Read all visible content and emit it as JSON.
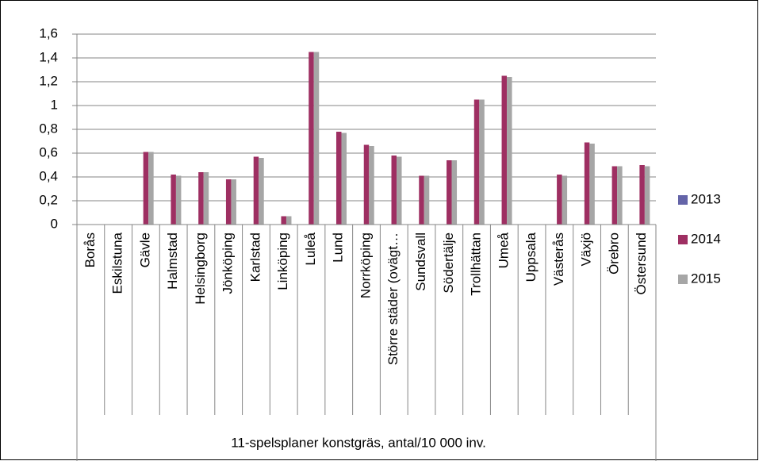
{
  "chart_data": {
    "type": "bar",
    "x_label": "11-spelsplaner konstgräs, antal/10 000 inv.",
    "categories": [
      "Borås",
      "Eskilstuna",
      "Gävle",
      "Halmstad",
      "Helsingborg",
      "Jönköping",
      "Karlstad",
      "Linköping",
      "Luleå",
      "Lund",
      "Norrköping",
      "Större städer (ovägt…",
      "Sundsvall",
      "Södertälje",
      "Trollhättan",
      "Umeå",
      "Uppsala",
      "Västerås",
      "Växjö",
      "Örebro",
      "Östersund"
    ],
    "series": [
      {
        "name": "2013",
        "color": "#6464a8",
        "values": [
          null,
          null,
          null,
          null,
          null,
          null,
          null,
          null,
          null,
          null,
          null,
          null,
          null,
          null,
          null,
          null,
          null,
          null,
          null,
          null,
          null
        ]
      },
      {
        "name": "2014",
        "color": "#9e2f62",
        "values": [
          null,
          null,
          0.61,
          0.42,
          0.44,
          0.38,
          0.57,
          0.07,
          1.45,
          0.78,
          0.67,
          0.58,
          0.41,
          0.54,
          1.05,
          1.25,
          null,
          0.42,
          0.69,
          0.49,
          0.5
        ]
      },
      {
        "name": "2015",
        "color": "#a6a6a6",
        "values": [
          null,
          null,
          0.61,
          0.41,
          0.44,
          0.38,
          0.56,
          0.07,
          1.45,
          0.77,
          0.66,
          0.57,
          0.41,
          0.54,
          1.05,
          1.24,
          null,
          0.41,
          0.68,
          0.49,
          0.49
        ]
      }
    ],
    "ylim": [
      0,
      1.6
    ],
    "yticks": [
      0,
      {
        "value": 0.2,
        "label": "0,2"
      },
      {
        "value": 0.4,
        "label": "0,4"
      },
      {
        "value": 0.6,
        "label": "0,6"
      },
      {
        "value": 0.8,
        "label": "0,8"
      },
      1,
      {
        "value": 1.2,
        "label": "1,2"
      },
      {
        "value": 1.4,
        "label": "1,4"
      },
      {
        "value": 1.6,
        "label": "1,6"
      }
    ],
    "grid": true,
    "legend": "right"
  }
}
